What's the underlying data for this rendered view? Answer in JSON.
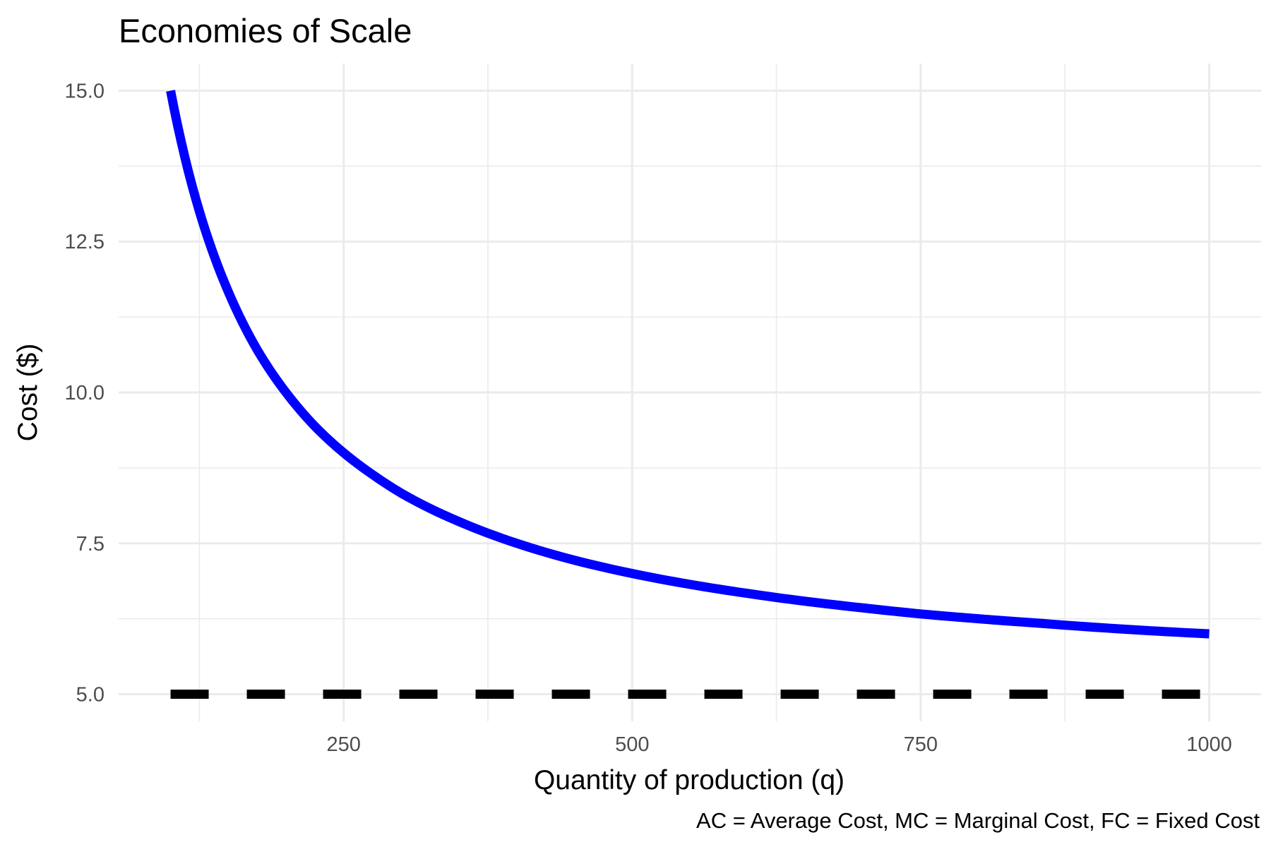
{
  "chart_data": {
    "type": "line",
    "title": "Economies of Scale",
    "xlabel": "Quantity of production (q)",
    "ylabel": "Cost ($)",
    "caption": "AC = Average Cost, MC = Marginal Cost, FC = Fixed Cost",
    "xlim": [
      55,
      1045
    ],
    "ylim": [
      4.55,
      15.45
    ],
    "x_ticks": [
      250,
      500,
      750,
      1000
    ],
    "x_tick_labels": [
      "250",
      "500",
      "750",
      "1000"
    ],
    "y_ticks": [
      5.0,
      7.5,
      10.0,
      12.5,
      15.0
    ],
    "y_tick_labels": [
      "5.0",
      "7.5",
      "10.0",
      "12.5",
      "15.0"
    ],
    "x_minor_ticks": [
      125,
      375,
      625,
      875
    ],
    "y_minor_ticks": [
      6.25,
      8.75,
      11.25,
      13.75
    ],
    "grid": true,
    "legend": "none",
    "series": [
      {
        "style": "solid",
        "color": "#0000ff",
        "x": [
          100,
          125,
          150,
          175,
          200,
          225,
          250,
          275,
          300,
          350,
          400,
          450,
          500,
          550,
          600,
          650,
          700,
          750,
          800,
          850,
          900,
          950,
          1000
        ],
        "values": [
          15.0,
          13.0,
          11.67,
          10.71,
          10.0,
          9.44,
          9.0,
          8.64,
          8.33,
          7.86,
          7.5,
          7.22,
          7.0,
          6.82,
          6.67,
          6.54,
          6.43,
          6.33,
          6.25,
          6.18,
          6.11,
          6.05,
          6.0
        ]
      },
      {
        "style": "dashed",
        "color": "#000000",
        "x": [
          100,
          1000
        ],
        "values": [
          5.0,
          5.0
        ]
      }
    ]
  }
}
